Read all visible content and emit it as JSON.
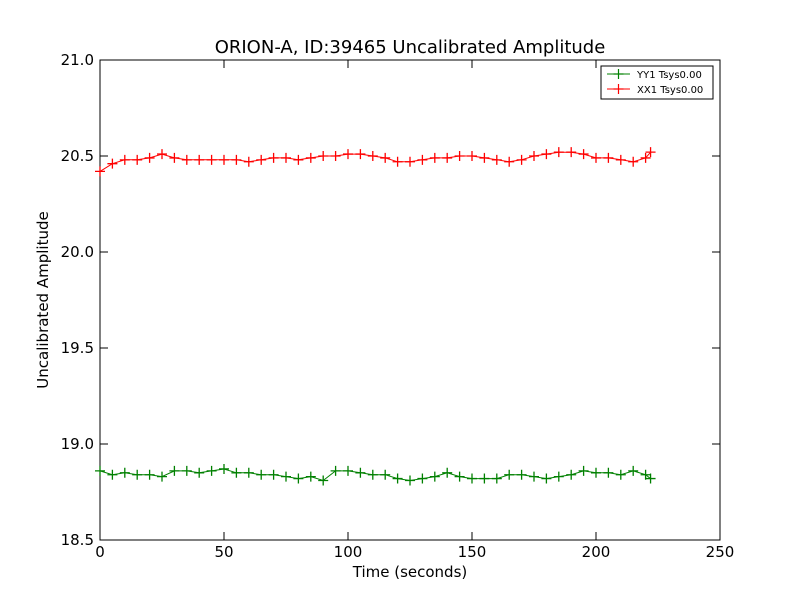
{
  "chart_data": {
    "type": "scatter",
    "title": "ORION-A, ID:39465 Uncalibrated Amplitude",
    "xlabel": "Time (seconds)",
    "ylabel": "Uncalibrated Amplitude",
    "xlim": [
      0,
      250
    ],
    "ylim": [
      18.5,
      21.0
    ],
    "xticks": [
      "0",
      "50",
      "100",
      "150",
      "200",
      "250"
    ],
    "yticks": [
      "18.5",
      "19.0",
      "19.5",
      "20.0",
      "20.5",
      "21.0"
    ],
    "grid": false,
    "legend_position": "top-right",
    "marker": "+",
    "series": [
      {
        "name": "YY1 Tsys0.00",
        "color": "#008000",
        "x": [
          0,
          5,
          10,
          15,
          20,
          25,
          30,
          35,
          40,
          45,
          50,
          55,
          60,
          65,
          70,
          75,
          80,
          85,
          90,
          95,
          100,
          105,
          110,
          115,
          120,
          125,
          130,
          135,
          140,
          145,
          150,
          155,
          160,
          165,
          170,
          175,
          180,
          185,
          190,
          195,
          200,
          205,
          210,
          215,
          220,
          222
        ],
        "values": [
          18.86,
          18.84,
          18.85,
          18.84,
          18.84,
          18.83,
          18.86,
          18.86,
          18.85,
          18.86,
          18.87,
          18.85,
          18.85,
          18.84,
          18.84,
          18.83,
          18.82,
          18.83,
          18.81,
          18.86,
          18.86,
          18.85,
          18.84,
          18.84,
          18.82,
          18.81,
          18.82,
          18.83,
          18.85,
          18.83,
          18.82,
          18.82,
          18.82,
          18.84,
          18.84,
          18.83,
          18.82,
          18.83,
          18.84,
          18.86,
          18.85,
          18.85,
          18.84,
          18.86,
          18.84,
          18.82
        ]
      },
      {
        "name": "XX1 Tsys0.00",
        "color": "#ff0000",
        "x": [
          0,
          5,
          10,
          15,
          20,
          25,
          30,
          35,
          40,
          45,
          50,
          55,
          60,
          65,
          70,
          75,
          80,
          85,
          90,
          95,
          100,
          105,
          110,
          115,
          120,
          125,
          130,
          135,
          140,
          145,
          150,
          155,
          160,
          165,
          170,
          175,
          180,
          185,
          190,
          195,
          200,
          205,
          210,
          215,
          220,
          222
        ],
        "values": [
          20.42,
          20.46,
          20.48,
          20.48,
          20.49,
          20.51,
          20.49,
          20.48,
          20.48,
          20.48,
          20.48,
          20.48,
          20.47,
          20.48,
          20.49,
          20.49,
          20.48,
          20.49,
          20.5,
          20.5,
          20.51,
          20.51,
          20.5,
          20.49,
          20.47,
          20.47,
          20.48,
          20.49,
          20.49,
          20.5,
          20.5,
          20.49,
          20.48,
          20.47,
          20.48,
          20.5,
          20.51,
          20.52,
          20.52,
          20.51,
          20.49,
          20.49,
          20.48,
          20.47,
          20.49,
          20.52
        ]
      }
    ]
  }
}
